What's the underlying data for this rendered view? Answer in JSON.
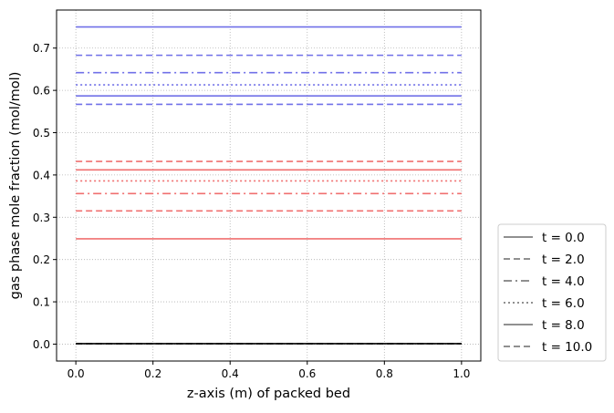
{
  "chart_data": {
    "type": "line",
    "xlabel": "z-axis (m) of packed bed",
    "ylabel": "gas phase mole fraction (mol/mol)",
    "xlim": [
      -0.05,
      1.05
    ],
    "ylim": [
      -0.04,
      0.79
    ],
    "xticks": [
      0.0,
      0.2,
      0.4,
      0.6,
      0.8,
      1.0
    ],
    "xtick_labels": [
      "0.0",
      "0.2",
      "0.4",
      "0.6",
      "0.8",
      "1.0"
    ],
    "yticks": [
      0.0,
      0.1,
      0.2,
      0.3,
      0.4,
      0.5,
      0.6,
      0.7
    ],
    "ytick_labels": [
      "0.0",
      "0.1",
      "0.2",
      "0.3",
      "0.4",
      "0.5",
      "0.6",
      "0.7"
    ],
    "grid": true,
    "legend_position": "outside-bottom-right",
    "legend": [
      {
        "label": "t = 0.0",
        "dash": "solid"
      },
      {
        "label": "t = 2.0",
        "dash": "dashed"
      },
      {
        "label": "t = 4.0",
        "dash": "dashdot"
      },
      {
        "label": "t = 6.0",
        "dash": "dotted"
      },
      {
        "label": "t = 8.0",
        "dash": "solid"
      },
      {
        "label": "t = 10.0",
        "dash": "dashed"
      }
    ],
    "colors": {
      "blue": "#7070e8",
      "red": "#f07070",
      "black": "#000000",
      "legend": "#808080"
    },
    "x": [
      0.0,
      1.0
    ],
    "series": [
      {
        "color": "blue",
        "dash": "solid",
        "values": [
          0.75,
          0.75
        ]
      },
      {
        "color": "blue",
        "dash": "dashed",
        "values": [
          0.683,
          0.683
        ]
      },
      {
        "color": "blue",
        "dash": "dashdot",
        "values": [
          0.642,
          0.642
        ]
      },
      {
        "color": "blue",
        "dash": "dotted",
        "values": [
          0.613,
          0.613
        ]
      },
      {
        "color": "blue",
        "dash": "solid",
        "values": [
          0.587,
          0.587
        ]
      },
      {
        "color": "blue",
        "dash": "dashed",
        "values": [
          0.567,
          0.567
        ]
      },
      {
        "color": "red",
        "dash": "dashed",
        "values": [
          0.432,
          0.432
        ]
      },
      {
        "color": "red",
        "dash": "solid",
        "values": [
          0.412,
          0.412
        ]
      },
      {
        "color": "red",
        "dash": "dotted",
        "values": [
          0.386,
          0.386
        ]
      },
      {
        "color": "red",
        "dash": "dashdot",
        "values": [
          0.356,
          0.356
        ]
      },
      {
        "color": "red",
        "dash": "dashed",
        "values": [
          0.315,
          0.315
        ]
      },
      {
        "color": "red",
        "dash": "solid",
        "values": [
          0.249,
          0.249
        ]
      },
      {
        "color": "black",
        "dash": "solid",
        "values": [
          0.001,
          0.001
        ]
      },
      {
        "color": "black",
        "dash": "dashed",
        "values": [
          0.001,
          0.001
        ]
      }
    ]
  }
}
